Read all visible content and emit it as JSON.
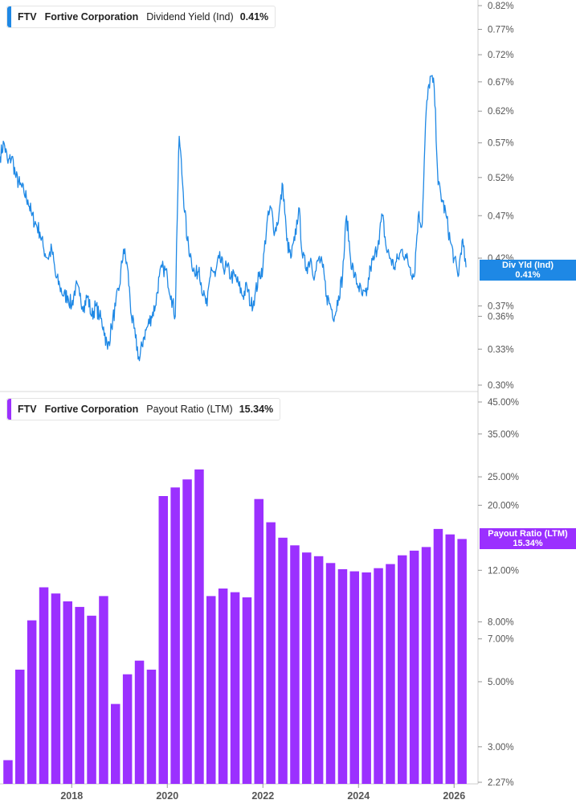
{
  "colors": {
    "yield_line": "#1E88E5",
    "payout_bar": "#9B30FF",
    "axis": "#cccccc"
  },
  "top_legend": {
    "ticker": "FTV",
    "company": "Fortive Corporation",
    "metric": "Dividend Yield (Ind)",
    "value": "0.41%"
  },
  "bottom_legend": {
    "ticker": "FTV",
    "company": "Fortive Corporation",
    "metric": "Payout Ratio (LTM)",
    "value": "15.34%"
  },
  "top_badge": {
    "label": "Div Yld (Ind)",
    "value": "0.41%"
  },
  "bottom_badge": {
    "label": "Payout Ratio (LTM)",
    "value": "15.34%"
  },
  "chart_data": [
    {
      "type": "line",
      "series": [
        {
          "name": "Dividend Yield (Ind)",
          "color": "#1E88E5"
        }
      ],
      "y_ticks": [
        "0.82%",
        "0.77%",
        "0.72%",
        "0.67%",
        "0.62%",
        "0.57%",
        "0.52%",
        "0.47%",
        "0.42%",
        "0.37%",
        "0.36%",
        "0.33%",
        "0.30%"
      ],
      "y_tick_values": [
        0.82,
        0.77,
        0.72,
        0.67,
        0.62,
        0.57,
        0.52,
        0.47,
        0.42,
        0.37,
        0.36,
        0.33,
        0.3
      ],
      "y_scale": "log",
      "ylim": [
        0.3,
        0.82
      ],
      "xlim": [
        "2016-07",
        "2026-07"
      ],
      "points": [
        [
          "2016-07",
          0.55
        ],
        [
          "2016-08",
          0.57
        ],
        [
          "2016-09",
          0.54
        ],
        [
          "2016-10",
          0.55
        ],
        [
          "2016-11",
          0.52
        ],
        [
          "2016-12",
          0.51
        ],
        [
          "2017-01",
          0.5
        ],
        [
          "2017-02",
          0.49
        ],
        [
          "2017-03",
          0.47
        ],
        [
          "2017-04",
          0.46
        ],
        [
          "2017-05",
          0.45
        ],
        [
          "2017-06",
          0.43
        ],
        [
          "2017-07",
          0.42
        ],
        [
          "2017-08",
          0.43
        ],
        [
          "2017-09",
          0.4
        ],
        [
          "2017-10",
          0.39
        ],
        [
          "2017-11",
          0.38
        ],
        [
          "2017-12",
          0.38
        ],
        [
          "2018-01",
          0.37
        ],
        [
          "2018-02",
          0.39
        ],
        [
          "2018-03",
          0.38
        ],
        [
          "2018-04",
          0.37
        ],
        [
          "2018-05",
          0.38
        ],
        [
          "2018-06",
          0.36
        ],
        [
          "2018-07",
          0.37
        ],
        [
          "2018-08",
          0.36
        ],
        [
          "2018-09",
          0.35
        ],
        [
          "2018-10",
          0.33
        ],
        [
          "2018-11",
          0.35
        ],
        [
          "2018-12",
          0.37
        ],
        [
          "2019-01",
          0.39
        ],
        [
          "2019-02",
          0.43
        ],
        [
          "2019-03",
          0.41
        ],
        [
          "2019-04",
          0.36
        ],
        [
          "2019-05",
          0.34
        ],
        [
          "2019-06",
          0.32
        ],
        [
          "2019-07",
          0.34
        ],
        [
          "2019-08",
          0.35
        ],
        [
          "2019-09",
          0.36
        ],
        [
          "2019-10",
          0.37
        ],
        [
          "2019-11",
          0.4
        ],
        [
          "2019-12",
          0.41
        ],
        [
          "2020-01",
          0.4
        ],
        [
          "2020-02",
          0.38
        ],
        [
          "2020-03",
          0.36
        ],
        [
          "2020-04",
          0.58
        ],
        [
          "2020-05",
          0.5
        ],
        [
          "2020-06",
          0.44
        ],
        [
          "2020-07",
          0.42
        ],
        [
          "2020-08",
          0.4
        ],
        [
          "2020-09",
          0.41
        ],
        [
          "2020-10",
          0.38
        ],
        [
          "2020-11",
          0.37
        ],
        [
          "2020-12",
          0.41
        ],
        [
          "2021-01",
          0.4
        ],
        [
          "2021-02",
          0.42
        ],
        [
          "2021-03",
          0.41
        ],
        [
          "2021-04",
          0.41
        ],
        [
          "2021-05",
          0.4
        ],
        [
          "2021-06",
          0.4
        ],
        [
          "2021-07",
          0.39
        ],
        [
          "2021-08",
          0.38
        ],
        [
          "2021-09",
          0.39
        ],
        [
          "2021-10",
          0.37
        ],
        [
          "2021-11",
          0.38
        ],
        [
          "2021-12",
          0.4
        ],
        [
          "2022-01",
          0.41
        ],
        [
          "2022-02",
          0.46
        ],
        [
          "2022-03",
          0.48
        ],
        [
          "2022-04",
          0.45
        ],
        [
          "2022-05",
          0.47
        ],
        [
          "2022-06",
          0.51
        ],
        [
          "2022-07",
          0.44
        ],
        [
          "2022-08",
          0.42
        ],
        [
          "2022-09",
          0.44
        ],
        [
          "2022-10",
          0.48
        ],
        [
          "2022-11",
          0.42
        ],
        [
          "2022-12",
          0.41
        ],
        [
          "2023-01",
          0.42
        ],
        [
          "2023-02",
          0.4
        ],
        [
          "2023-03",
          0.42
        ],
        [
          "2023-04",
          0.41
        ],
        [
          "2023-05",
          0.38
        ],
        [
          "2023-06",
          0.37
        ],
        [
          "2023-07",
          0.36
        ],
        [
          "2023-08",
          0.38
        ],
        [
          "2023-09",
          0.4
        ],
        [
          "2023-10",
          0.47
        ],
        [
          "2023-11",
          0.42
        ],
        [
          "2023-12",
          0.4
        ],
        [
          "2024-01",
          0.39
        ],
        [
          "2024-02",
          0.38
        ],
        [
          "2024-03",
          0.38
        ],
        [
          "2024-04",
          0.41
        ],
        [
          "2024-05",
          0.42
        ],
        [
          "2024-06",
          0.44
        ],
        [
          "2024-07",
          0.47
        ],
        [
          "2024-08",
          0.43
        ],
        [
          "2024-09",
          0.42
        ],
        [
          "2024-10",
          0.41
        ],
        [
          "2024-11",
          0.42
        ],
        [
          "2024-12",
          0.43
        ],
        [
          "2025-01",
          0.42
        ],
        [
          "2025-02",
          0.41
        ],
        [
          "2025-03",
          0.4
        ],
        [
          "2025-04",
          0.47
        ],
        [
          "2025-05",
          0.46
        ],
        [
          "2025-06",
          0.62
        ],
        [
          "2025-07",
          0.68
        ],
        [
          "2025-08",
          0.66
        ],
        [
          "2025-09",
          0.51
        ],
        [
          "2025-10",
          0.49
        ],
        [
          "2025-11",
          0.47
        ],
        [
          "2025-12",
          0.44
        ],
        [
          "2026-01",
          0.42
        ],
        [
          "2026-02",
          0.4
        ],
        [
          "2026-03",
          0.44
        ],
        [
          "2026-04",
          0.41
        ]
      ]
    },
    {
      "type": "bar",
      "series": [
        {
          "name": "Payout Ratio (LTM)",
          "color": "#9B30FF"
        }
      ],
      "y_ticks": [
        "45.00%",
        "35.00%",
        "25.00%",
        "20.00%",
        "12.00%",
        "8.00%",
        "7.00%",
        "5.00%",
        "3.00%",
        "2.27%"
      ],
      "y_tick_values": [
        45,
        35,
        25,
        20,
        12,
        8,
        7,
        5,
        3,
        2.27
      ],
      "y_scale": "log",
      "ylim": [
        2.27,
        45
      ],
      "x_ticks": [
        "2018",
        "2020",
        "2022",
        "2024",
        "2026"
      ],
      "x_tick_dates": [
        "2018-01",
        "2020-01",
        "2022-01",
        "2024-01",
        "2026-01"
      ],
      "xlim": [
        "2016-07",
        "2026-07"
      ],
      "points": [
        [
          "2016-09",
          2.7
        ],
        [
          "2016-12",
          5.5
        ],
        [
          "2017-03",
          8.1
        ],
        [
          "2017-06",
          10.5
        ],
        [
          "2017-09",
          10.0
        ],
        [
          "2017-12",
          9.4
        ],
        [
          "2018-03",
          9.0
        ],
        [
          "2018-06",
          8.4
        ],
        [
          "2018-09",
          9.8
        ],
        [
          "2018-12",
          4.2
        ],
        [
          "2019-03",
          5.3
        ],
        [
          "2019-06",
          5.9
        ],
        [
          "2019-09",
          5.5
        ],
        [
          "2019-12",
          21.5
        ],
        [
          "2020-03",
          23.0
        ],
        [
          "2020-06",
          24.5
        ],
        [
          "2020-09",
          26.5
        ],
        [
          "2020-12",
          9.8
        ],
        [
          "2021-03",
          10.4
        ],
        [
          "2021-06",
          10.1
        ],
        [
          "2021-09",
          9.7
        ],
        [
          "2021-12",
          21.0
        ],
        [
          "2022-03",
          17.5
        ],
        [
          "2022-06",
          15.5
        ],
        [
          "2022-09",
          14.6
        ],
        [
          "2022-12",
          13.8
        ],
        [
          "2023-03",
          13.4
        ],
        [
          "2023-06",
          12.7
        ],
        [
          "2023-09",
          12.1
        ],
        [
          "2023-12",
          11.9
        ],
        [
          "2024-03",
          11.8
        ],
        [
          "2024-06",
          12.2
        ],
        [
          "2024-09",
          12.6
        ],
        [
          "2024-12",
          13.5
        ],
        [
          "2025-03",
          14.0
        ],
        [
          "2025-06",
          14.4
        ],
        [
          "2025-09",
          16.6
        ],
        [
          "2025-12",
          15.9
        ],
        [
          "2026-03",
          15.34
        ]
      ]
    }
  ]
}
